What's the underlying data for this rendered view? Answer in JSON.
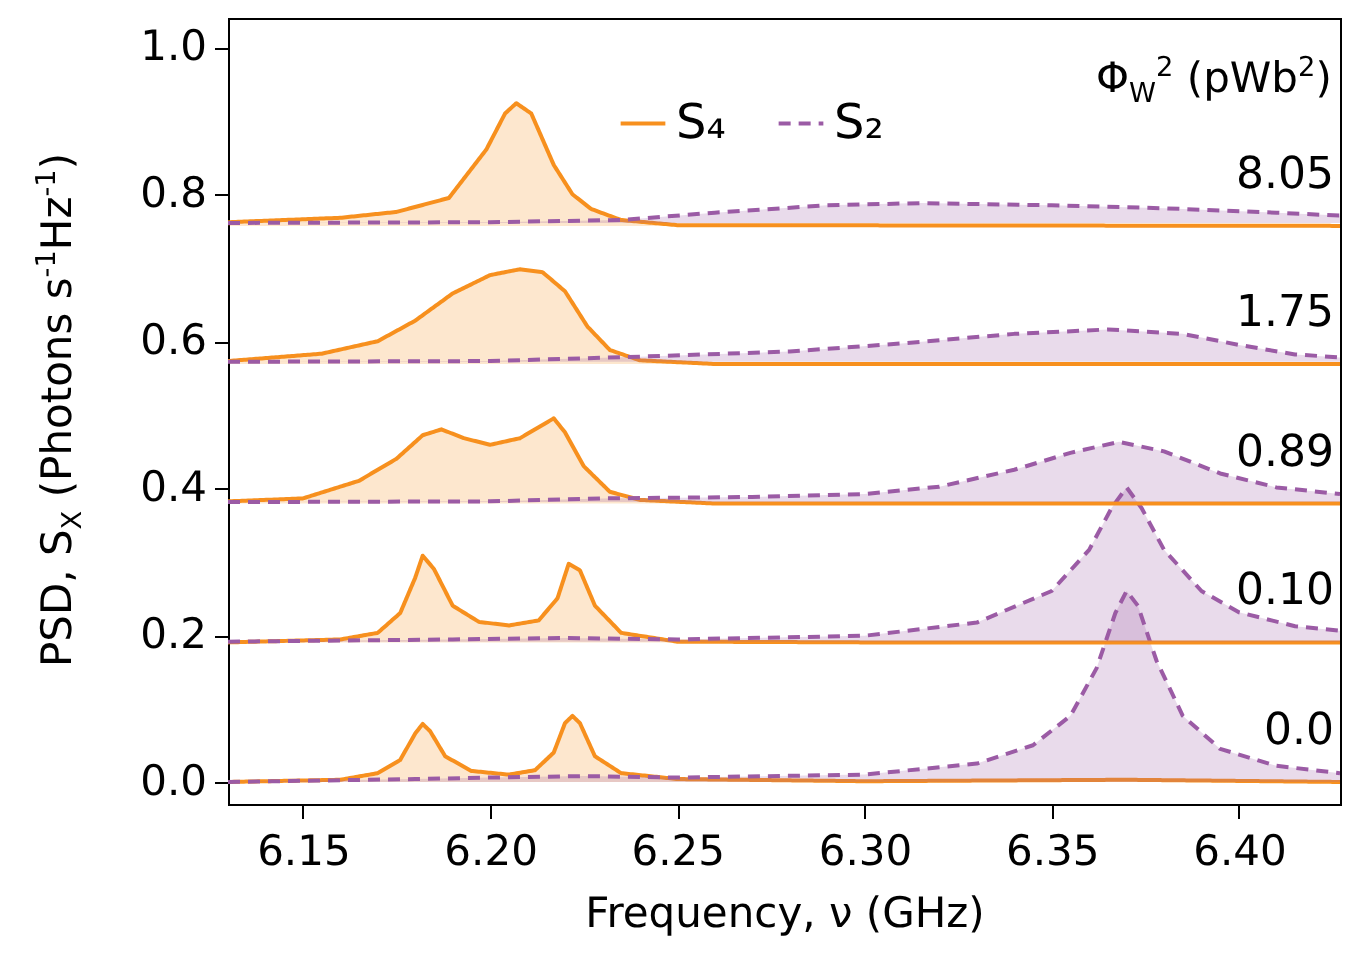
{
  "chart_data": {
    "type": "area",
    "xlabel": "Frequency, ν (GHz)",
    "ylabel": "PSD, S$_{X}$ (Photons s$^{-1}$Hz$^{-1}$)",
    "legend_title": "Φ$_{W}$$^{2}$ (pWb$^{2}$)",
    "xlim": [
      6.13,
      6.427
    ],
    "xticks": [
      6.15,
      {
        "value": 6.2,
        "label": "6.20"
      },
      6.25,
      {
        "value": 6.3,
        "label": "6.30"
      },
      6.35,
      {
        "value": 6.4,
        "label": "6.40"
      }
    ],
    "ylim": [
      -0.03,
      1.04
    ],
    "yticks": [
      {
        "value": 0,
        "label": "0.0"
      },
      0.2,
      0.4,
      0.6,
      0.8,
      {
        "value": 1,
        "label": "1.0"
      }
    ],
    "grid": false,
    "legend": "top right",
    "marker": "none",
    "series": [
      {
        "name": "S₄",
        "color": "#f7901e",
        "line_style": "solid",
        "x": [
          6.13,
          6.16,
          6.17,
          6.176,
          6.18,
          6.182,
          6.184,
          6.188,
          6.195,
          6.205,
          6.212,
          6.217,
          6.22,
          6.222,
          6.224,
          6.228,
          6.235,
          6.25,
          6.3,
          6.37,
          6.427
        ],
        "values": [
          0,
          0.003,
          0.012,
          0.03,
          0.066,
          0.079,
          0.069,
          0.035,
          0.015,
          0.01,
          0.016,
          0.04,
          0.08,
          0.09,
          0.08,
          0.035,
          0.012,
          0.004,
          0.001,
          0.003,
          0
        ]
      },
      {
        "name": "S₂",
        "color": "#9b5ba5",
        "line_style": "dashed",
        "x": [
          6.13,
          6.18,
          6.2,
          6.225,
          6.25,
          6.3,
          6.33,
          6.345,
          6.355,
          6.362,
          6.367,
          6.37,
          6.373,
          6.378,
          6.385,
          6.395,
          6.41,
          6.427
        ],
        "values": [
          0,
          0.004,
          0.006,
          0.008,
          0.006,
          0.01,
          0.025,
          0.05,
          0.09,
          0.155,
          0.23,
          0.26,
          0.24,
          0.165,
          0.09,
          0.045,
          0.022,
          0.012
        ]
      },
      {
        "color": "#f7901e",
        "line_style": "solid",
        "x": [
          6.13,
          6.16,
          6.17,
          6.176,
          6.18,
          6.182,
          6.185,
          6.19,
          6.197,
          6.205,
          6.213,
          6.218,
          6.221,
          6.224,
          6.228,
          6.235,
          6.25,
          6.3,
          6.427
        ],
        "values": [
          0.19,
          0.194,
          0.203,
          0.23,
          0.278,
          0.308,
          0.29,
          0.24,
          0.218,
          0.213,
          0.22,
          0.25,
          0.297,
          0.288,
          0.24,
          0.203,
          0.191,
          0.19,
          0.19
        ]
      },
      {
        "color": "#9b5ba5",
        "line_style": "dashed",
        "x": [
          6.13,
          6.19,
          6.22,
          6.25,
          6.3,
          6.33,
          6.35,
          6.36,
          6.366,
          6.37,
          6.374,
          6.38,
          6.39,
          6.4,
          6.415,
          6.427
        ],
        "values": [
          0.191,
          0.194,
          0.196,
          0.194,
          0.199,
          0.217,
          0.26,
          0.316,
          0.373,
          0.401,
          0.373,
          0.316,
          0.26,
          0.231,
          0.212,
          0.206
        ]
      },
      {
        "color": "#f7901e",
        "line_style": "solid",
        "x": [
          6.13,
          6.15,
          6.165,
          6.175,
          6.182,
          6.187,
          6.193,
          6.2,
          6.208,
          6.214,
          6.217,
          6.22,
          6.225,
          6.232,
          6.24,
          6.26,
          6.427
        ],
        "values": [
          0.382,
          0.386,
          0.41,
          0.44,
          0.472,
          0.48,
          0.468,
          0.459,
          0.468,
          0.486,
          0.495,
          0.476,
          0.43,
          0.395,
          0.384,
          0.379,
          0.379
        ]
      },
      {
        "color": "#9b5ba5",
        "line_style": "dashed",
        "x": [
          6.13,
          6.2,
          6.23,
          6.27,
          6.3,
          6.32,
          6.34,
          6.355,
          6.368,
          6.38,
          6.395,
          6.41,
          6.427
        ],
        "values": [
          0.381,
          0.382,
          0.386,
          0.388,
          0.392,
          0.402,
          0.425,
          0.448,
          0.463,
          0.45,
          0.42,
          0.401,
          0.392
        ]
      },
      {
        "color": "#f7901e",
        "line_style": "solid",
        "x": [
          6.13,
          6.155,
          6.17,
          6.18,
          6.19,
          6.2,
          6.208,
          6.214,
          6.22,
          6.226,
          6.232,
          6.24,
          6.26,
          6.427
        ],
        "values": [
          0.573,
          0.583,
          0.6,
          0.628,
          0.665,
          0.69,
          0.698,
          0.694,
          0.668,
          0.62,
          0.588,
          0.574,
          0.569,
          0.569
        ]
      },
      {
        "color": "#9b5ba5",
        "line_style": "dashed",
        "x": [
          6.13,
          6.2,
          6.24,
          6.28,
          6.31,
          6.34,
          6.365,
          6.385,
          6.4,
          6.415,
          6.427
        ],
        "values": [
          0.572,
          0.573,
          0.579,
          0.586,
          0.597,
          0.61,
          0.616,
          0.61,
          0.595,
          0.582,
          0.578
        ]
      },
      {
        "color": "#f7901e",
        "line_style": "solid",
        "x": [
          6.13,
          6.16,
          6.175,
          6.189,
          6.199,
          6.204,
          6.207,
          6.211,
          6.217,
          6.222,
          6.227,
          6.235,
          6.25,
          6.427
        ],
        "values": [
          0.762,
          0.768,
          0.776,
          0.795,
          0.861,
          0.91,
          0.924,
          0.91,
          0.84,
          0.8,
          0.78,
          0.765,
          0.758,
          0.757
        ]
      },
      {
        "color": "#9b5ba5",
        "line_style": "dashed",
        "x": [
          6.13,
          6.2,
          6.235,
          6.26,
          6.29,
          6.315,
          6.35,
          6.38,
          6.41,
          6.427
        ],
        "values": [
          0.761,
          0.762,
          0.765,
          0.775,
          0.785,
          0.788,
          0.785,
          0.781,
          0.775,
          0.771
        ]
      }
    ],
    "annotations": [
      "8.05",
      "1.75",
      "0.89",
      "0.10",
      "0.0"
    ]
  }
}
